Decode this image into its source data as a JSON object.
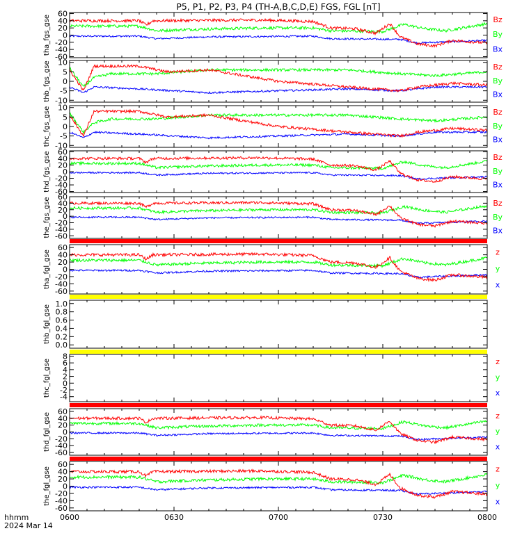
{
  "title": "P5, P1, P2, P3, P4 (TH-A,B,C,D,E) FGS, FGL [nT]",
  "colors": {
    "x": "#0000ff",
    "y": "#00ff00",
    "z": "#ff0000",
    "flag_red": "#ff0000",
    "flag_yellow": "#ffff00"
  },
  "time_axis": {
    "ticks": [
      "0600",
      "0630",
      "0700",
      "0730",
      "0800"
    ],
    "label": "hhmm",
    "date": "2024 Mar 14",
    "range_minutes": [
      0,
      120
    ]
  },
  "chart_data": [
    {
      "type": "line",
      "ylabel": "tha_fgs_gse",
      "ylim": [
        -63,
        63
      ],
      "ticks": [
        "60",
        "40",
        "20",
        "0",
        "-20",
        "-40",
        "-60"
      ],
      "tick_values": [
        60,
        40,
        20,
        0,
        -20,
        -40,
        -60
      ],
      "legend": [
        "Bz",
        "By",
        "Bx"
      ],
      "data": true,
      "profile": "full",
      "flag": ""
    },
    {
      "type": "line",
      "ylabel": "thb_fgs_gse",
      "ylim": [
        -11,
        11
      ],
      "ticks": [
        "10",
        "5",
        "0",
        "-5",
        "-10"
      ],
      "tick_values": [
        10,
        5,
        0,
        -5,
        -10
      ],
      "legend": [
        "Bz",
        "By",
        "Bx"
      ],
      "data": true,
      "profile": "small",
      "flag": ""
    },
    {
      "type": "line",
      "ylabel": "thc_fgs_gse",
      "ylim": [
        -11,
        11
      ],
      "ticks": [
        "10",
        "5",
        "0",
        "-5",
        "-10"
      ],
      "tick_values": [
        10,
        5,
        0,
        -5,
        -10
      ],
      "legend": [
        "Bz",
        "By",
        "Bx"
      ],
      "data": true,
      "profile": "small",
      "flag": ""
    },
    {
      "type": "line",
      "ylabel": "thd_fgs_gse",
      "ylim": [
        -63,
        63
      ],
      "ticks": [
        "60",
        "40",
        "20",
        "0",
        "-20",
        "-40",
        "-60"
      ],
      "tick_values": [
        60,
        40,
        20,
        0,
        -20,
        -40,
        -60
      ],
      "legend": [
        "Bz",
        "By",
        "Bx"
      ],
      "data": true,
      "profile": "full",
      "flag": ""
    },
    {
      "type": "line",
      "ylabel": "the_fgs_gse",
      "ylim": [
        -68,
        60
      ],
      "ticks": [
        "60",
        "40",
        "20",
        "0",
        "-20",
        "-40",
        "-60"
      ],
      "tick_values": [
        60,
        40,
        20,
        0,
        -20,
        -40,
        -60
      ],
      "legend": [
        "Bz",
        "By",
        "Bx"
      ],
      "data": true,
      "profile": "full",
      "flag": "red"
    },
    {
      "type": "line",
      "ylabel": "tha_fgl_gse",
      "ylim": [
        -68,
        68
      ],
      "ticks": [
        "60",
        "40",
        "20",
        "0",
        "-20",
        "-40",
        "-60"
      ],
      "tick_values": [
        60,
        40,
        20,
        0,
        -20,
        -40,
        -60
      ],
      "legend": [
        "z",
        "y",
        "x"
      ],
      "data": true,
      "profile": "full",
      "flag": "yellow"
    },
    {
      "type": "line",
      "ylabel": "thb_fgl_gse",
      "ylim": [
        -0.08,
        1.08
      ],
      "ticks": [
        "1.0",
        "0.8",
        "0.6",
        "0.4",
        "0.2",
        "0.0"
      ],
      "tick_values": [
        1.0,
        0.8,
        0.6,
        0.4,
        0.2,
        0.0
      ],
      "legend": [],
      "data": false,
      "profile": "none",
      "flag": "yellow"
    },
    {
      "type": "line",
      "ylabel": "thc_fgl_gse",
      "ylim": [
        -5.5,
        8.5
      ],
      "ticks": [
        "8",
        "6",
        "4",
        "2",
        "0",
        "-2",
        "-4"
      ],
      "tick_values": [
        8,
        6,
        4,
        2,
        0,
        -2,
        -4
      ],
      "legend": [
        "z",
        "y",
        "x"
      ],
      "data": false,
      "profile": "none",
      "flag": "red"
    },
    {
      "type": "line",
      "ylabel": "thd_fgl_gse",
      "ylim": [
        -68,
        68
      ],
      "ticks": [
        "60",
        "40",
        "20",
        "0",
        "-20",
        "-40",
        "-60"
      ],
      "tick_values": [
        60,
        40,
        20,
        0,
        -20,
        -40,
        -60
      ],
      "legend": [
        "z",
        "y",
        "x"
      ],
      "data": true,
      "profile": "full",
      "flag": "red"
    },
    {
      "type": "line",
      "ylabel": "the_fgl_gse",
      "ylim": [
        -68,
        68
      ],
      "ticks": [
        "60",
        "40",
        "20",
        "0",
        "-20",
        "-40",
        "-60"
      ],
      "tick_values": [
        60,
        40,
        20,
        0,
        -20,
        -40,
        -60
      ],
      "legend": [
        "z",
        "y",
        "x"
      ],
      "data": true,
      "profile": "full",
      "flag": ""
    }
  ]
}
